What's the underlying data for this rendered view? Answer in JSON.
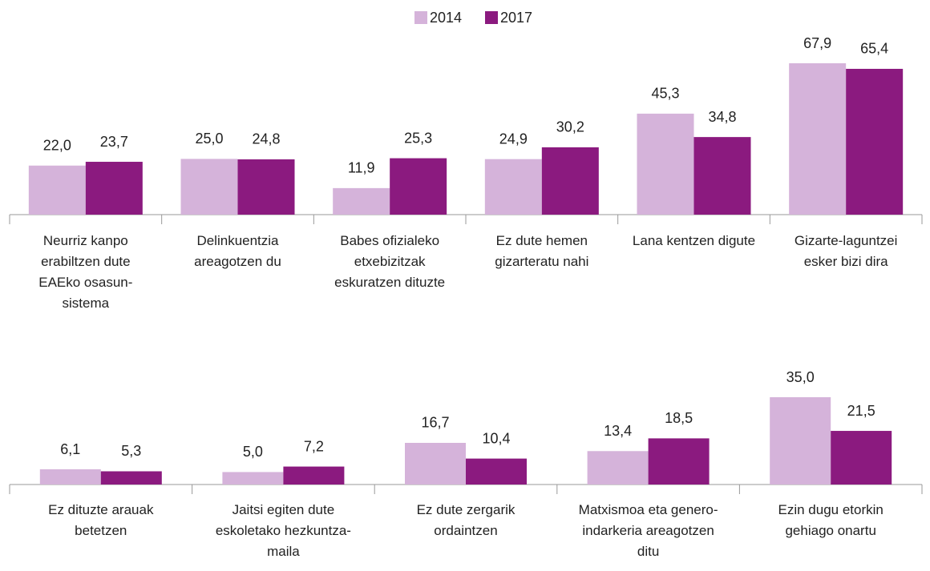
{
  "chart_data": [
    {
      "type": "bar",
      "categories": [
        "Neurriz kanpo\nerabiltzen dute\nEAEko osasun-\nsistema",
        "Delinkuentzia\nareagotzen du",
        "Babes ofizialeko\netxebizitzak\neskuratzen dituzte",
        "Ez dute hemen\ngizarteratu nahi",
        "Lana kentzen digute",
        "Gizarte-laguntzei\nesker bizi dira"
      ],
      "series": [
        {
          "name": "2014",
          "color": "#d5b3da",
          "values": [
            22.0,
            25.0,
            11.9,
            24.9,
            45.3,
            67.9
          ],
          "value_labels": [
            "22,0",
            "25,0",
            "11,9",
            "24,9",
            "45,3",
            "67,9"
          ]
        },
        {
          "name": "2017",
          "color": "#8b1a7f",
          "values": [
            23.7,
            24.8,
            25.3,
            30.2,
            34.8,
            65.4
          ],
          "value_labels": [
            "23,7",
            "24,8",
            "25,3",
            "30,2",
            "34,8",
            "65,4"
          ]
        }
      ]
    },
    {
      "type": "bar",
      "categories": [
        "Ez dituzte arauak\nbetetzen",
        "Jaitsi egiten dute\neskoletako hezkuntza-\nmaila",
        "Ez dute zergarik\nordaintzen",
        "Matxismoa eta genero-\nindarkeria areagotzen\nditu",
        "Ezin dugu etorkin\ngehiago onartu"
      ],
      "series": [
        {
          "name": "2014",
          "color": "#d5b3da",
          "values": [
            6.1,
            5.0,
            16.7,
            13.4,
            35.0
          ],
          "value_labels": [
            "6,1",
            "5,0",
            "16,7",
            "13,4",
            "35,0"
          ]
        },
        {
          "name": "2017",
          "color": "#8b1a7f",
          "values": [
            5.3,
            7.2,
            10.4,
            18.5,
            21.5
          ],
          "value_labels": [
            "5,3",
            "7,2",
            "10,4",
            "18,5",
            "21,5"
          ]
        }
      ]
    }
  ]
}
